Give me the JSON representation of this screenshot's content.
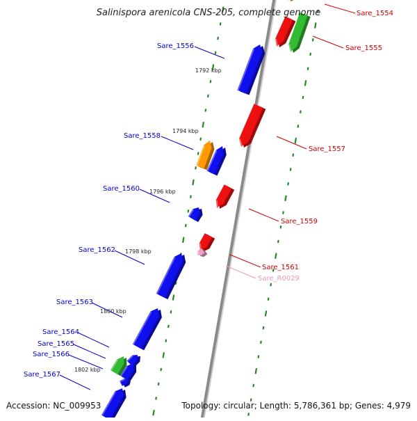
{
  "title": "Salinispora arenicola CNS-205, complete genome",
  "footer": {
    "accession": "Accession: NC_009953",
    "summary": "Topology: circular; Length: 5,786,361 bp; Genes: 4,979"
  },
  "colors": {
    "forward_label": "#0000cc",
    "reverse_label": "#cc0000",
    "rna_label": "#ee99bb",
    "backbone": "#8a8a8a",
    "tick": "#228822",
    "forward_gene": "#1010ee",
    "reverse_gene": "#ee1010",
    "orange_gene": "#ff9900",
    "green_gene": "#33bb33",
    "pink_gene": "#f0a0c8"
  },
  "tick_labels": [
    "1792 kbp",
    "1794 kbp",
    "1796 kbp",
    "1798 kbp",
    "1800 kbp",
    "1802 kbp"
  ],
  "forward_labels": [
    "Sare_1556",
    "Sare_1558",
    "Sare_1560",
    "Sare_1562",
    "Sare_1563",
    "Sare_1564",
    "Sare_1565",
    "Sare_1566",
    "Sare_1567"
  ],
  "reverse_labels": [
    "Sare_1554",
    "Sare_1555",
    "Sare_1557",
    "Sare_1559",
    "Sare_1561",
    "Sare_R0029"
  ]
}
